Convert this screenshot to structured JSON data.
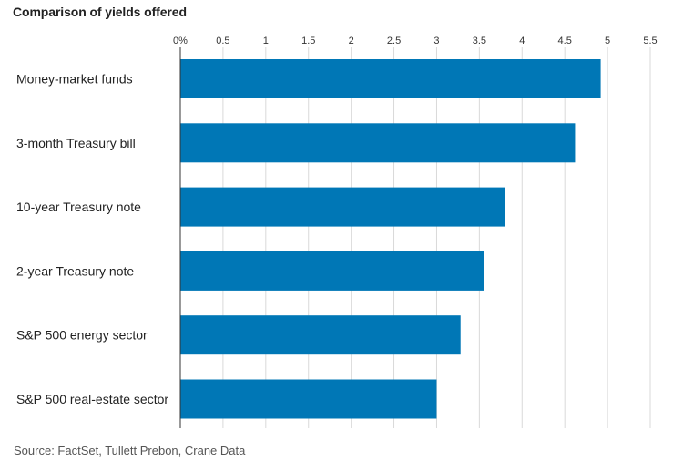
{
  "chart_data": {
    "type": "bar",
    "orientation": "horizontal",
    "title": "Comparison of yields offered",
    "source": "Source: FactSet, Tullett Prebon, Crane Data",
    "categories": [
      "Money-market funds",
      "3-month Treasury bill",
      "10-year Treasury note",
      "2-year Treasury note",
      "S&P 500 energy sector",
      "S&P 500 real-estate sector"
    ],
    "values": [
      4.92,
      4.62,
      3.8,
      3.56,
      3.28,
      3.0
    ],
    "xlim": [
      0,
      5.5
    ],
    "xticks": [
      0,
      0.5,
      1,
      1.5,
      2,
      2.5,
      3,
      3.5,
      4,
      4.5,
      5,
      5.5
    ],
    "xtick_labels": [
      "0%",
      "0.5",
      "1",
      "1.5",
      "2",
      "2.5",
      "3",
      "3.5",
      "4",
      "4.5",
      "5",
      "5.5"
    ],
    "axis_position": "top",
    "grid": true,
    "bar_color": "#0077b6",
    "grid_color": "#d9d9d9",
    "baseline_color": "#333333"
  }
}
